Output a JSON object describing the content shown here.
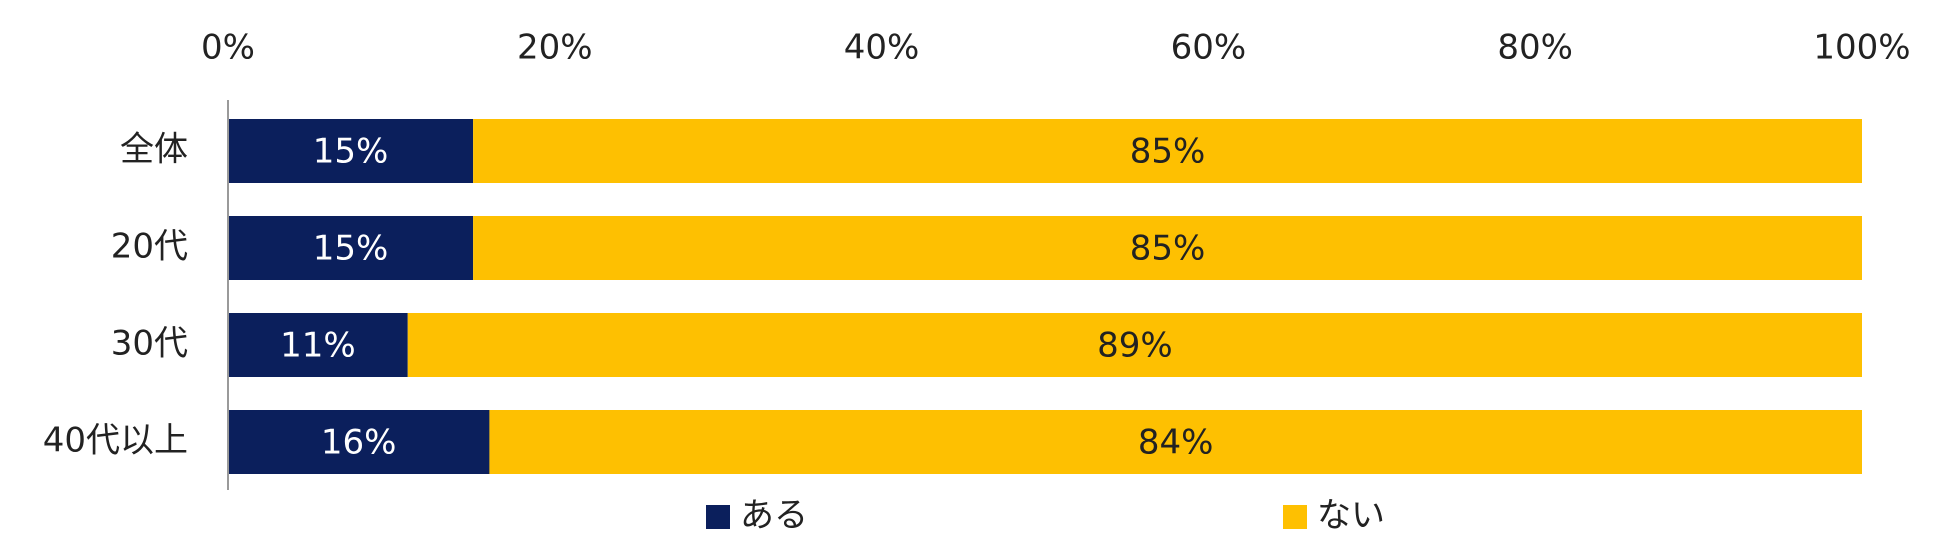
{
  "chart_data": {
    "type": "bar",
    "orientation": "horizontal",
    "stacked": true,
    "percent_stacked": true,
    "categories": [
      "全体",
      "20代",
      "30代",
      "40代以上"
    ],
    "series": [
      {
        "name": "ある",
        "values": [
          15,
          15,
          11,
          16
        ],
        "color": "#0b1f5c",
        "label_color": "#ffffff"
      },
      {
        "name": "ない",
        "values": [
          85,
          85,
          89,
          84
        ],
        "color": "#fec001",
        "label_color": "#222222"
      }
    ],
    "data_labels": [
      [
        "15%",
        "15%",
        "11%",
        "16%"
      ],
      [
        "85%",
        "85%",
        "89%",
        "84%"
      ]
    ],
    "xaxis": {
      "position": "top",
      "range": [
        0,
        100
      ],
      "ticks": [
        0,
        20,
        40,
        60,
        80,
        100
      ],
      "tick_labels": [
        "0%",
        "20%",
        "40%",
        "60%",
        "80%",
        "100%"
      ]
    },
    "grid": false,
    "legend": {
      "position": "bottom",
      "entries": [
        "ある",
        "ない"
      ]
    }
  }
}
